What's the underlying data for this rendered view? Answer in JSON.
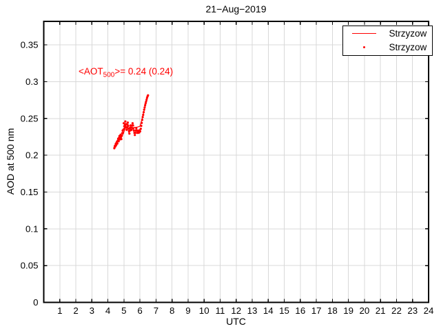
{
  "figure": {
    "title": "21−Aug−2019",
    "xlabel": "UTC",
    "ylabel": "AOD at 500 nm"
  },
  "annotation": {
    "pre": "<AOT",
    "sub": "500",
    "post": ">= 0.24 (0.24)"
  },
  "legend": {
    "entries": [
      {
        "label": "Strzyzow",
        "marker": "line"
      },
      {
        "label": "Strzyzow",
        "marker": "dot"
      }
    ]
  },
  "colors": {
    "series": "#ff0000",
    "annotation": "#ff0000",
    "grid": "#d8d8d8",
    "axis": "#000000",
    "background": "#ffffff"
  },
  "chart_data": {
    "type": "line",
    "title": "21-Aug-2019",
    "xlabel": "UTC",
    "ylabel": "AOD at 500 nm",
    "xlim": [
      0,
      24
    ],
    "ylim": [
      0,
      0.382
    ],
    "xticks": [
      1,
      2,
      3,
      4,
      5,
      6,
      7,
      8,
      9,
      10,
      11,
      12,
      13,
      14,
      15,
      16,
      17,
      18,
      19,
      20,
      21,
      22,
      23,
      24
    ],
    "yticks": [
      0,
      0.05,
      0.1,
      0.15,
      0.2,
      0.25,
      0.3,
      0.35
    ],
    "ytick_labels": [
      "0",
      "0.05",
      "0.1",
      "0.15",
      "0.2",
      "0.25",
      "0.3",
      "0.35"
    ],
    "grid": true,
    "legend_position": "top-right",
    "mean_annotation": "<AOT_500>= 0.24 (0.24)",
    "series": [
      {
        "name": "Strzyzow",
        "type": "line",
        "color": "#ff0000",
        "points": [
          [
            4.4,
            0.211
          ],
          [
            4.52,
            0.216
          ],
          [
            4.62,
            0.22
          ],
          [
            4.72,
            0.223
          ],
          [
            4.8,
            0.2215
          ],
          [
            4.88,
            0.226
          ],
          [
            4.96,
            0.2295
          ],
          [
            5.04,
            0.234
          ],
          [
            5.1,
            0.2435
          ],
          [
            5.16,
            0.236
          ],
          [
            5.22,
            0.24
          ],
          [
            5.3,
            0.2315
          ],
          [
            5.38,
            0.237
          ],
          [
            5.46,
            0.2335
          ],
          [
            5.54,
            0.236
          ],
          [
            5.64,
            0.238
          ],
          [
            5.76,
            0.238
          ],
          [
            5.88,
            0.2385
          ],
          [
            6.0,
            0.2395
          ],
          [
            6.1,
            0.247
          ],
          [
            6.2,
            0.2555
          ],
          [
            6.3,
            0.264
          ],
          [
            6.4,
            0.2725
          ],
          [
            6.46,
            0.278
          ]
        ]
      },
      {
        "name": "Strzyzow",
        "type": "scatter",
        "marker": "dot",
        "color": "#ff0000",
        "points": [
          [
            4.4,
            0.2095
          ],
          [
            4.42,
            0.211
          ],
          [
            4.44,
            0.213
          ],
          [
            4.47,
            0.212
          ],
          [
            4.49,
            0.2155
          ],
          [
            4.52,
            0.214
          ],
          [
            4.54,
            0.217
          ],
          [
            4.57,
            0.2185
          ],
          [
            4.59,
            0.216
          ],
          [
            4.62,
            0.22
          ],
          [
            4.64,
            0.2225
          ],
          [
            4.67,
            0.219
          ],
          [
            4.69,
            0.2235
          ],
          [
            4.72,
            0.226
          ],
          [
            4.74,
            0.2215
          ],
          [
            4.77,
            0.224
          ],
          [
            4.79,
            0.228
          ],
          [
            4.82,
            0.2255
          ],
          [
            4.84,
            0.222
          ],
          [
            4.87,
            0.2265
          ],
          [
            4.89,
            0.23
          ],
          [
            4.92,
            0.2335
          ],
          [
            4.94,
            0.2305
          ],
          [
            4.97,
            0.235
          ],
          [
            4.99,
            0.2435
          ],
          [
            5.02,
            0.2395
          ],
          [
            5.04,
            0.2365
          ],
          [
            5.07,
            0.2415
          ],
          [
            5.09,
            0.246
          ],
          [
            5.12,
            0.2425
          ],
          [
            5.14,
            0.238
          ],
          [
            5.17,
            0.2345
          ],
          [
            5.19,
            0.2375
          ],
          [
            5.22,
            0.2415
          ],
          [
            5.24,
            0.2445
          ],
          [
            5.27,
            0.24
          ],
          [
            5.29,
            0.2365
          ],
          [
            5.32,
            0.2325
          ],
          [
            5.34,
            0.2295
          ],
          [
            5.37,
            0.2335
          ],
          [
            5.39,
            0.2375
          ],
          [
            5.42,
            0.2405
          ],
          [
            5.44,
            0.2375
          ],
          [
            5.47,
            0.2345
          ],
          [
            5.49,
            0.2375
          ],
          [
            5.52,
            0.2405
          ],
          [
            5.54,
            0.2435
          ],
          [
            5.57,
            0.2405
          ],
          [
            5.59,
            0.2365
          ],
          [
            5.62,
            0.2335
          ],
          [
            5.65,
            0.2305
          ],
          [
            5.68,
            0.2275
          ],
          [
            5.71,
            0.2305
          ],
          [
            5.74,
            0.2335
          ],
          [
            5.77,
            0.2365
          ],
          [
            5.8,
            0.2335
          ],
          [
            5.83,
            0.2305
          ],
          [
            5.86,
            0.2335
          ],
          [
            5.89,
            0.2305
          ],
          [
            5.92,
            0.233
          ],
          [
            5.95,
            0.231
          ],
          [
            5.98,
            0.234
          ],
          [
            6.01,
            0.2325
          ],
          [
            6.05,
            0.236
          ],
          [
            6.08,
            0.24
          ],
          [
            6.11,
            0.244
          ],
          [
            6.14,
            0.248
          ],
          [
            6.17,
            0.252
          ],
          [
            6.2,
            0.255
          ],
          [
            6.23,
            0.2585
          ],
          [
            6.26,
            0.262
          ],
          [
            6.29,
            0.265
          ],
          [
            6.32,
            0.268
          ],
          [
            6.35,
            0.2705
          ],
          [
            6.38,
            0.273
          ],
          [
            6.41,
            0.2755
          ],
          [
            6.44,
            0.278
          ],
          [
            6.47,
            0.28
          ],
          [
            6.5,
            0.2815
          ]
        ]
      }
    ]
  }
}
